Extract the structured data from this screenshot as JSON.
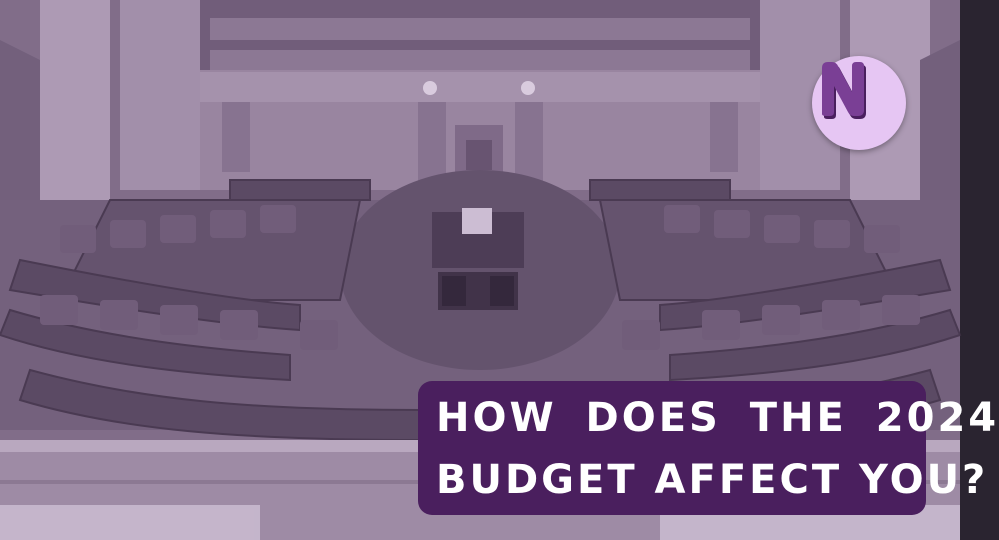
{
  "image": {
    "subject": "chamber",
    "tint_color": "#9b78ad"
  },
  "logo": {
    "letter": "N",
    "bg_color": "#e6c6f3",
    "letter_color": "#7a3f95",
    "shadow_color": "#4a1f5e"
  },
  "headline": {
    "line1": "HOW DOES THE 2024",
    "line2": "BUDGET AFFECT YOU?",
    "bg_color": "#4a1f5e",
    "text_color": "#ffffff"
  }
}
